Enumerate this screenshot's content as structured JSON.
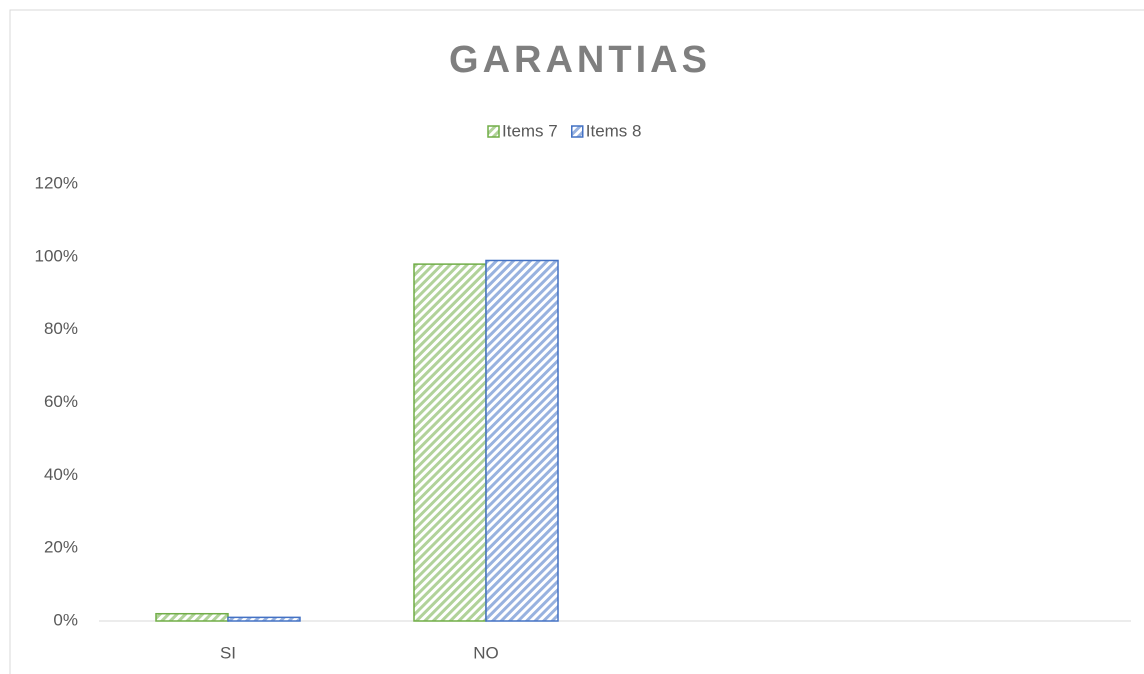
{
  "chart_data": {
    "type": "bar",
    "title": "GARANTIAS",
    "categories": [
      "SI",
      "NO",
      null,
      null
    ],
    "series": [
      {
        "name": "Items 7",
        "color": "#70ad47",
        "values": [
          2,
          98,
          null,
          null
        ]
      },
      {
        "name": "Items 8",
        "color": "#4472c4",
        "values": [
          1,
          99,
          null,
          null
        ]
      }
    ],
    "ylim": [
      0,
      120
    ],
    "yticks": [
      {
        "value": 0,
        "label": "0%"
      },
      {
        "value": 20,
        "label": "20%"
      },
      {
        "value": 40,
        "label": "40%"
      },
      {
        "value": 60,
        "label": "60%"
      },
      {
        "value": 80,
        "label": "80%"
      },
      {
        "value": 100,
        "label": "100%"
      },
      {
        "value": 120,
        "label": "120%"
      }
    ],
    "grid": false,
    "legend": "top"
  }
}
